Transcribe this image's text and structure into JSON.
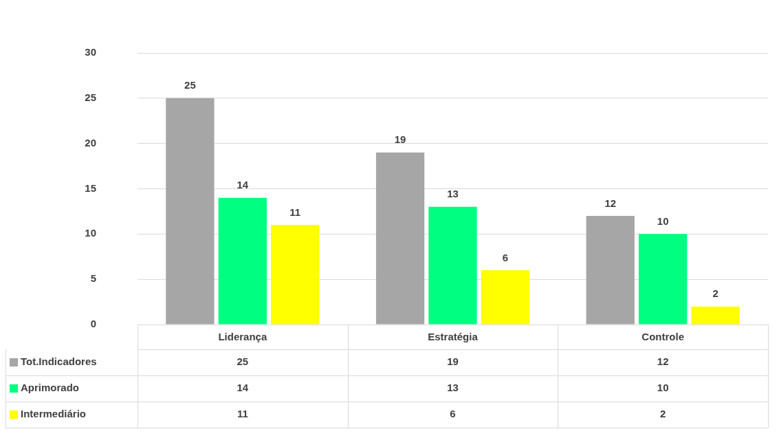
{
  "chart_data": {
    "type": "bar",
    "categories": [
      "Liderança",
      "Estratégia",
      "Controle"
    ],
    "series": [
      {
        "name": "Tot.Indicadores",
        "color": "#a6a6a6",
        "values": [
          25,
          19,
          12
        ]
      },
      {
        "name": "Aprimorado",
        "color": "#00ff80",
        "values": [
          14,
          13,
          10
        ]
      },
      {
        "name": "Intermediário",
        "color": "#ffff00",
        "values": [
          11,
          6,
          2
        ]
      }
    ],
    "annotations": [
      "25",
      "19",
      "12",
      "14",
      "13",
      "10",
      "11",
      "6",
      "2"
    ],
    "ylim": [
      0,
      30
    ],
    "yticks": [
      0,
      5,
      10,
      15,
      20,
      25,
      30
    ],
    "grid": "y",
    "legend": "bottom",
    "data_labels": true
  }
}
